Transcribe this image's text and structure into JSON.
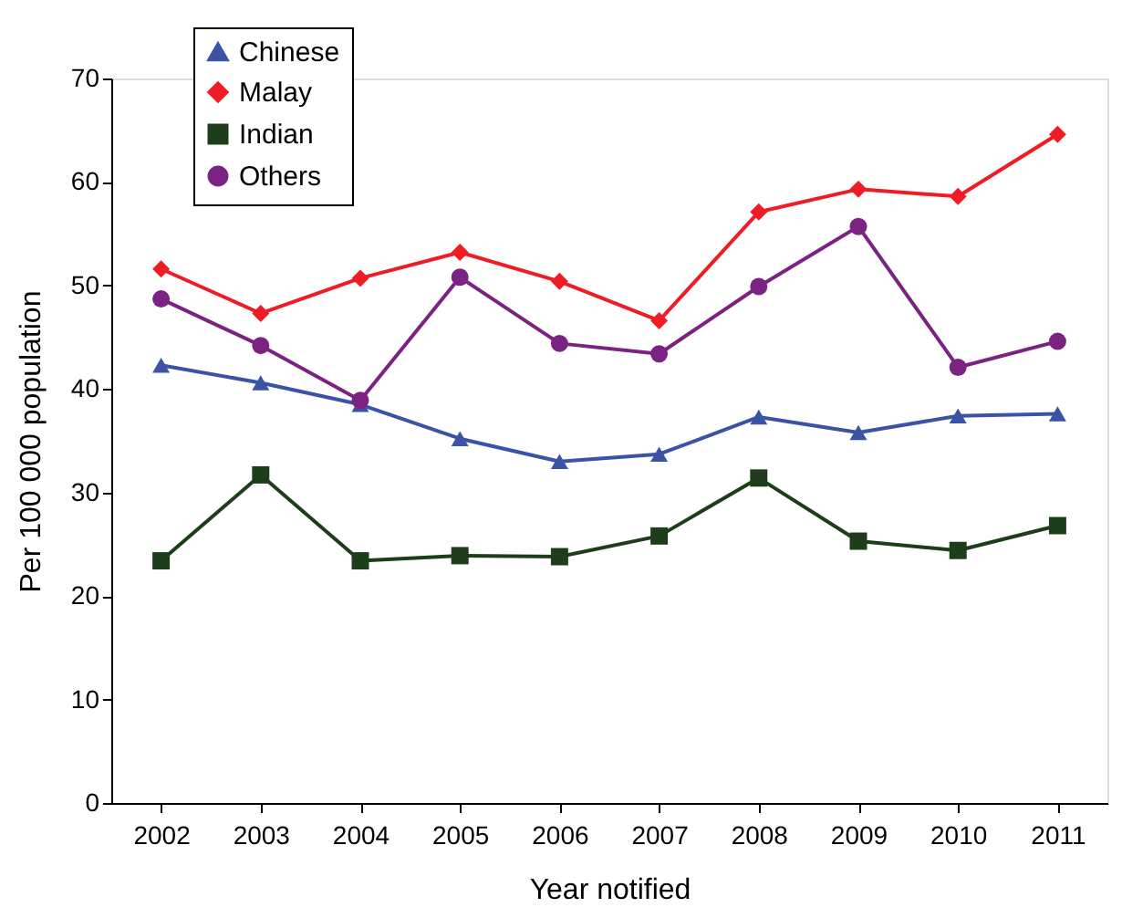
{
  "chart_data": {
    "type": "line",
    "xlabel": "Year notified",
    "ylabel": "Per 100 000 population",
    "categories": [
      "2002",
      "2003",
      "2004",
      "2005",
      "2006",
      "2007",
      "2008",
      "2009",
      "2010",
      "2011"
    ],
    "ylim": [
      0,
      70
    ],
    "yticks": [
      0,
      10,
      20,
      30,
      40,
      50,
      60,
      70
    ],
    "grid": false,
    "legend": "top left",
    "line_style": "solid",
    "series": [
      {
        "name": "Chinese",
        "color": "#3a53a4",
        "marker": "triangle",
        "values": [
          42.3,
          40.6,
          38.5,
          35.2,
          33.0,
          33.7,
          37.3,
          35.8,
          37.4,
          37.6
        ]
      },
      {
        "name": "Malay",
        "color": "#ee1c25",
        "marker": "diamond",
        "values": [
          51.6,
          47.3,
          50.7,
          53.2,
          50.4,
          46.6,
          57.1,
          59.3,
          58.6,
          64.6
        ]
      },
      {
        "name": "Indian",
        "color": "#1e3d1a",
        "marker": "square",
        "values": [
          23.4,
          31.7,
          23.4,
          23.9,
          23.8,
          25.8,
          31.4,
          25.3,
          24.4,
          26.8
        ]
      },
      {
        "name": "Others",
        "color": "#7b2382",
        "marker": "circle",
        "values": [
          48.7,
          44.2,
          38.9,
          50.8,
          44.4,
          43.4,
          49.9,
          55.7,
          42.1,
          44.6
        ]
      }
    ]
  }
}
